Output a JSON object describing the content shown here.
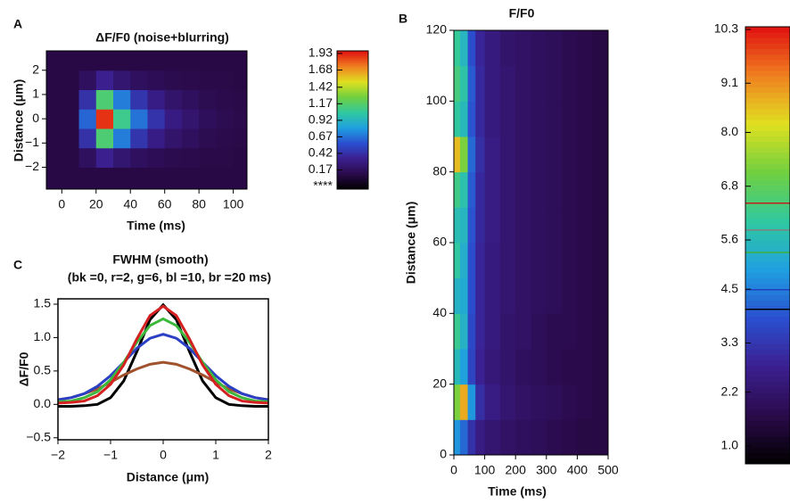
{
  "chart_data": [
    {
      "type": "heatmap",
      "panel_label": "A",
      "title": "ΔF/F0 (noise+blurring)",
      "xlabel": "Time (ms)",
      "ylabel": "Distance (μm)",
      "xbins": [
        -9,
        0,
        10,
        20,
        30,
        40,
        50,
        60,
        70,
        80,
        90,
        100,
        108
      ],
      "ybins": [
        -2.9,
        -2.0,
        -1.2,
        -0.4,
        0.4,
        1.2,
        2.0,
        2.8
      ],
      "z": [
        [
          0.1,
          0.1,
          0.1,
          0.1,
          0.1,
          0.1,
          0.1,
          0.1,
          0.1,
          0.1,
          0.1,
          0.1
        ],
        [
          0.1,
          0.1,
          0.18,
          0.34,
          0.24,
          0.18,
          0.15,
          0.13,
          0.12,
          0.11,
          0.11,
          0.1
        ],
        [
          0.1,
          0.1,
          0.43,
          1.15,
          0.71,
          0.45,
          0.31,
          0.22,
          0.18,
          0.14,
          0.12,
          0.11
        ],
        [
          0.1,
          0.1,
          0.64,
          1.9,
          1.09,
          0.68,
          0.44,
          0.3,
          0.23,
          0.17,
          0.14,
          0.12
        ],
        [
          0.1,
          0.1,
          0.43,
          1.15,
          0.71,
          0.45,
          0.31,
          0.22,
          0.18,
          0.14,
          0.12,
          0.11
        ],
        [
          0.1,
          0.1,
          0.18,
          0.34,
          0.24,
          0.18,
          0.15,
          0.13,
          0.12,
          0.11,
          0.11,
          0.1
        ],
        [
          0.1,
          0.1,
          0.1,
          0.1,
          0.1,
          0.1,
          0.1,
          0.1,
          0.1,
          0.1,
          0.1,
          0.1
        ]
      ],
      "xlim": [
        -9,
        108
      ],
      "ylim": [
        -2.9,
        2.8
      ],
      "xticks": [
        0,
        20,
        40,
        60,
        80,
        100
      ],
      "yticks": [
        {
          "value": -2,
          "label": "−2"
        },
        {
          "value": -1,
          "label": "−1"
        },
        0,
        1,
        2
      ],
      "colormap": [
        "#000000",
        "#2a0a4a",
        "#3b1f8f",
        "#2a4fd0",
        "#1fa0e0",
        "#30c8a0",
        "#70d040",
        "#e0e020",
        "#f08020",
        "#e01010"
      ],
      "colorbar": {
        "zlim": [
          -0.12,
          1.97
        ],
        "ticks": [
          1.93,
          1.68,
          1.42,
          1.17,
          0.92,
          0.67,
          0.42,
          0.17,
          {
            "value": -0.08,
            "label": "****"
          }
        ]
      }
    },
    {
      "type": "heatmap",
      "panel_label": "B",
      "title": "F/F0",
      "xlabel": "Time (ms)",
      "ylabel": "Distance (μm)",
      "xbins": [
        0,
        20,
        45,
        70,
        100,
        150,
        200,
        250,
        300,
        350,
        400,
        450,
        500
      ],
      "ybins": [
        0,
        10,
        20,
        30,
        40,
        50,
        60,
        70,
        80,
        90,
        100,
        110,
        120
      ],
      "z": [
        [
          4.8,
          4.2,
          3.2,
          2.6,
          2.3,
          2.1,
          2.0,
          1.9,
          1.8,
          1.7,
          1.6,
          1.6
        ],
        [
          7.2,
          8.8,
          4.8,
          3.1,
          2.6,
          2.3,
          2.1,
          2.0,
          1.9,
          1.8,
          1.7,
          1.6
        ],
        [
          5.6,
          5.0,
          3.6,
          2.8,
          2.4,
          2.2,
          2.0,
          1.9,
          1.8,
          1.7,
          1.7,
          1.6
        ],
        [
          6.2,
          5.4,
          3.7,
          2.9,
          2.5,
          2.2,
          2.1,
          1.9,
          1.8,
          1.8,
          1.7,
          1.6
        ],
        [
          5.4,
          5.2,
          3.8,
          2.9,
          2.5,
          2.3,
          2.1,
          2.0,
          1.9,
          1.8,
          1.7,
          1.6
        ],
        [
          6.0,
          5.3,
          3.8,
          2.9,
          2.5,
          2.3,
          2.1,
          2.0,
          1.9,
          1.8,
          1.7,
          1.6
        ],
        [
          5.7,
          5.5,
          3.9,
          3.0,
          2.6,
          2.3,
          2.1,
          2.0,
          1.9,
          1.8,
          1.7,
          1.6
        ],
        [
          6.3,
          5.8,
          4.0,
          3.0,
          2.6,
          2.3,
          2.1,
          2.0,
          1.9,
          1.8,
          1.7,
          1.6
        ],
        [
          8.6,
          7.2,
          4.2,
          3.1,
          2.6,
          2.3,
          2.1,
          2.0,
          1.9,
          1.8,
          1.7,
          1.6
        ],
        [
          6.0,
          5.6,
          3.9,
          3.0,
          2.5,
          2.3,
          2.1,
          2.0,
          1.9,
          1.8,
          1.7,
          1.6
        ],
        [
          6.4,
          5.9,
          4.0,
          3.0,
          2.5,
          2.3,
          2.1,
          2.0,
          1.9,
          1.8,
          1.7,
          1.6
        ],
        [
          6.1,
          5.5,
          3.8,
          2.9,
          2.5,
          2.2,
          2.1,
          2.0,
          1.9,
          1.8,
          1.7,
          1.6
        ]
      ],
      "xlim": [
        0,
        500
      ],
      "ylim": [
        0,
        120
      ],
      "xticks": [
        0,
        100,
        200,
        300,
        400,
        500
      ],
      "yticks": [
        0,
        20,
        40,
        60,
        80,
        100,
        120
      ],
      "colormap": [
        "#000000",
        "#2a0a4a",
        "#3b1f8f",
        "#2a4fd0",
        "#1fa0e0",
        "#30c8a0",
        "#70d040",
        "#e0e020",
        "#f08020",
        "#e01010"
      ],
      "colorbar": {
        "zlim": [
          0.6,
          10.36
        ],
        "ticks": [
          {
            "value": 1.0,
            "label": "1.0"
          },
          2.2,
          3.3,
          4.5,
          5.6,
          6.8,
          {
            "value": 8.0,
            "label": "8.0"
          },
          9.1,
          10.3
        ],
        "lines": [
          {
            "value": 6.42,
            "color": "#c0201a"
          },
          {
            "value": 5.82,
            "color": "#808080"
          },
          {
            "value": 5.32,
            "color": "#40b040"
          },
          {
            "value": 4.49,
            "color": "#2040c0"
          },
          {
            "value": 4.05,
            "color": "#000000"
          }
        ]
      }
    },
    {
      "type": "line",
      "panel_label": "C",
      "title": "FWHM (smooth)",
      "subtitle": "(bk =0, r=2, g=6, bl =10, br =20 ms)",
      "xlabel": "Distance (μm)",
      "ylabel": "ΔF/F0",
      "x": [
        -2,
        -1.75,
        -1.5,
        -1.25,
        -1,
        -0.75,
        -0.5,
        -0.25,
        0,
        0.25,
        0.5,
        0.75,
        1,
        1.25,
        1.5,
        1.75,
        2
      ],
      "series": [
        {
          "color": "#000000",
          "values": [
            -0.03,
            -0.03,
            -0.02,
            0.0,
            0.1,
            0.35,
            0.79,
            1.27,
            1.49,
            1.27,
            0.79,
            0.35,
            0.1,
            0.0,
            -0.02,
            -0.03,
            -0.03
          ]
        },
        {
          "color": "#a0522d",
          "values": [
            0.07,
            0.1,
            0.16,
            0.23,
            0.33,
            0.44,
            0.53,
            0.6,
            0.63,
            0.6,
            0.53,
            0.44,
            0.33,
            0.23,
            0.16,
            0.1,
            0.07
          ]
        },
        {
          "color": "#2b3fc4",
          "values": [
            0.07,
            0.1,
            0.16,
            0.27,
            0.43,
            0.63,
            0.84,
            0.99,
            1.05,
            0.99,
            0.84,
            0.63,
            0.43,
            0.27,
            0.16,
            0.1,
            0.07
          ]
        },
        {
          "color": "#3cb83c",
          "values": [
            0.04,
            0.05,
            0.1,
            0.19,
            0.37,
            0.63,
            0.93,
            1.18,
            1.28,
            1.18,
            0.93,
            0.63,
            0.37,
            0.19,
            0.1,
            0.05,
            0.04
          ]
        },
        {
          "color": "#d42020",
          "values": [
            0.02,
            0.03,
            0.05,
            0.13,
            0.3,
            0.59,
            0.98,
            1.33,
            1.47,
            1.33,
            0.98,
            0.59,
            0.3,
            0.13,
            0.05,
            0.03,
            0.02
          ]
        }
      ],
      "xlim": [
        -2,
        2
      ],
      "ylim": [
        -0.53,
        1.58
      ],
      "xticks": [
        {
          "value": -2,
          "label": "−2"
        },
        {
          "value": -1,
          "label": "−1"
        },
        0,
        1,
        2
      ],
      "yticks": [
        {
          "value": -0.5,
          "label": "−0.5"
        },
        {
          "value": 0,
          "label": "0.0"
        },
        {
          "value": 0.5,
          "label": "0.5"
        },
        {
          "value": 1,
          "label": "1.0"
        },
        {
          "value": 1.5,
          "label": "1.5"
        }
      ]
    }
  ]
}
